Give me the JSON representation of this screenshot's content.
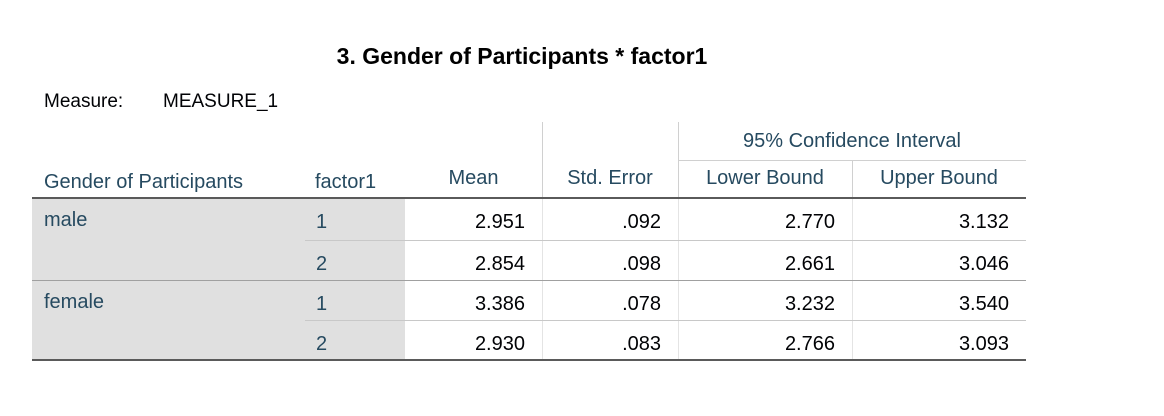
{
  "title": "3. Gender of Participants * factor1",
  "measure": {
    "label": "Measure:",
    "value": "MEASURE_1"
  },
  "table": {
    "span_header": "95% Confidence Interval",
    "columns": [
      "Gender of Participants",
      "factor1",
      "Mean",
      "Std. Error",
      "Lower Bound",
      "Upper Bound"
    ],
    "groups": [
      {
        "label": "male",
        "rows": [
          [
            "1",
            "2.951",
            ".092",
            "2.770",
            "3.132"
          ],
          [
            "2",
            "2.854",
            ".098",
            "2.661",
            "3.046"
          ]
        ]
      },
      {
        "label": "female",
        "rows": [
          [
            "1",
            "3.386",
            ".078",
            "3.232",
            "3.540"
          ],
          [
            "2",
            "2.930",
            ".083",
            "2.766",
            "3.093"
          ]
        ]
      }
    ]
  }
}
